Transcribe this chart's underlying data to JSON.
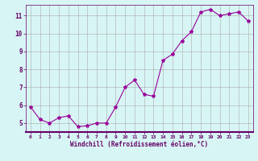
{
  "x": [
    0,
    1,
    2,
    3,
    4,
    5,
    6,
    7,
    8,
    9,
    10,
    11,
    12,
    13,
    14,
    15,
    16,
    17,
    18,
    19,
    20,
    21,
    22,
    23
  ],
  "y": [
    5.9,
    5.2,
    5.0,
    5.3,
    5.4,
    4.8,
    4.85,
    5.0,
    5.0,
    5.9,
    7.0,
    7.4,
    6.6,
    6.5,
    8.5,
    8.85,
    9.6,
    10.1,
    11.2,
    11.35,
    11.0,
    11.1,
    11.2,
    10.7
  ],
  "line_color": "#990099",
  "marker": "*",
  "marker_size": 3,
  "bg_color": "#d8f5f5",
  "grid_color": "#aaaaaa",
  "xlabel": "Windchill (Refroidissement éolien,°C)",
  "xlabel_color": "#660066",
  "ylabel_ticks": [
    5,
    6,
    7,
    8,
    9,
    10,
    11
  ],
  "xtick_labels": [
    "0",
    "1",
    "2",
    "3",
    "4",
    "5",
    "6",
    "7",
    "8",
    "9",
    "10",
    "11",
    "12",
    "13",
    "14",
    "15",
    "16",
    "17",
    "18",
    "19",
    "20",
    "21",
    "22",
    "23"
  ],
  "ylim": [
    4.5,
    11.6
  ],
  "xlim": [
    -0.5,
    23.5
  ],
  "tick_color": "#660066",
  "spine_color": "#660066",
  "bottom_spine_color": "#660066"
}
